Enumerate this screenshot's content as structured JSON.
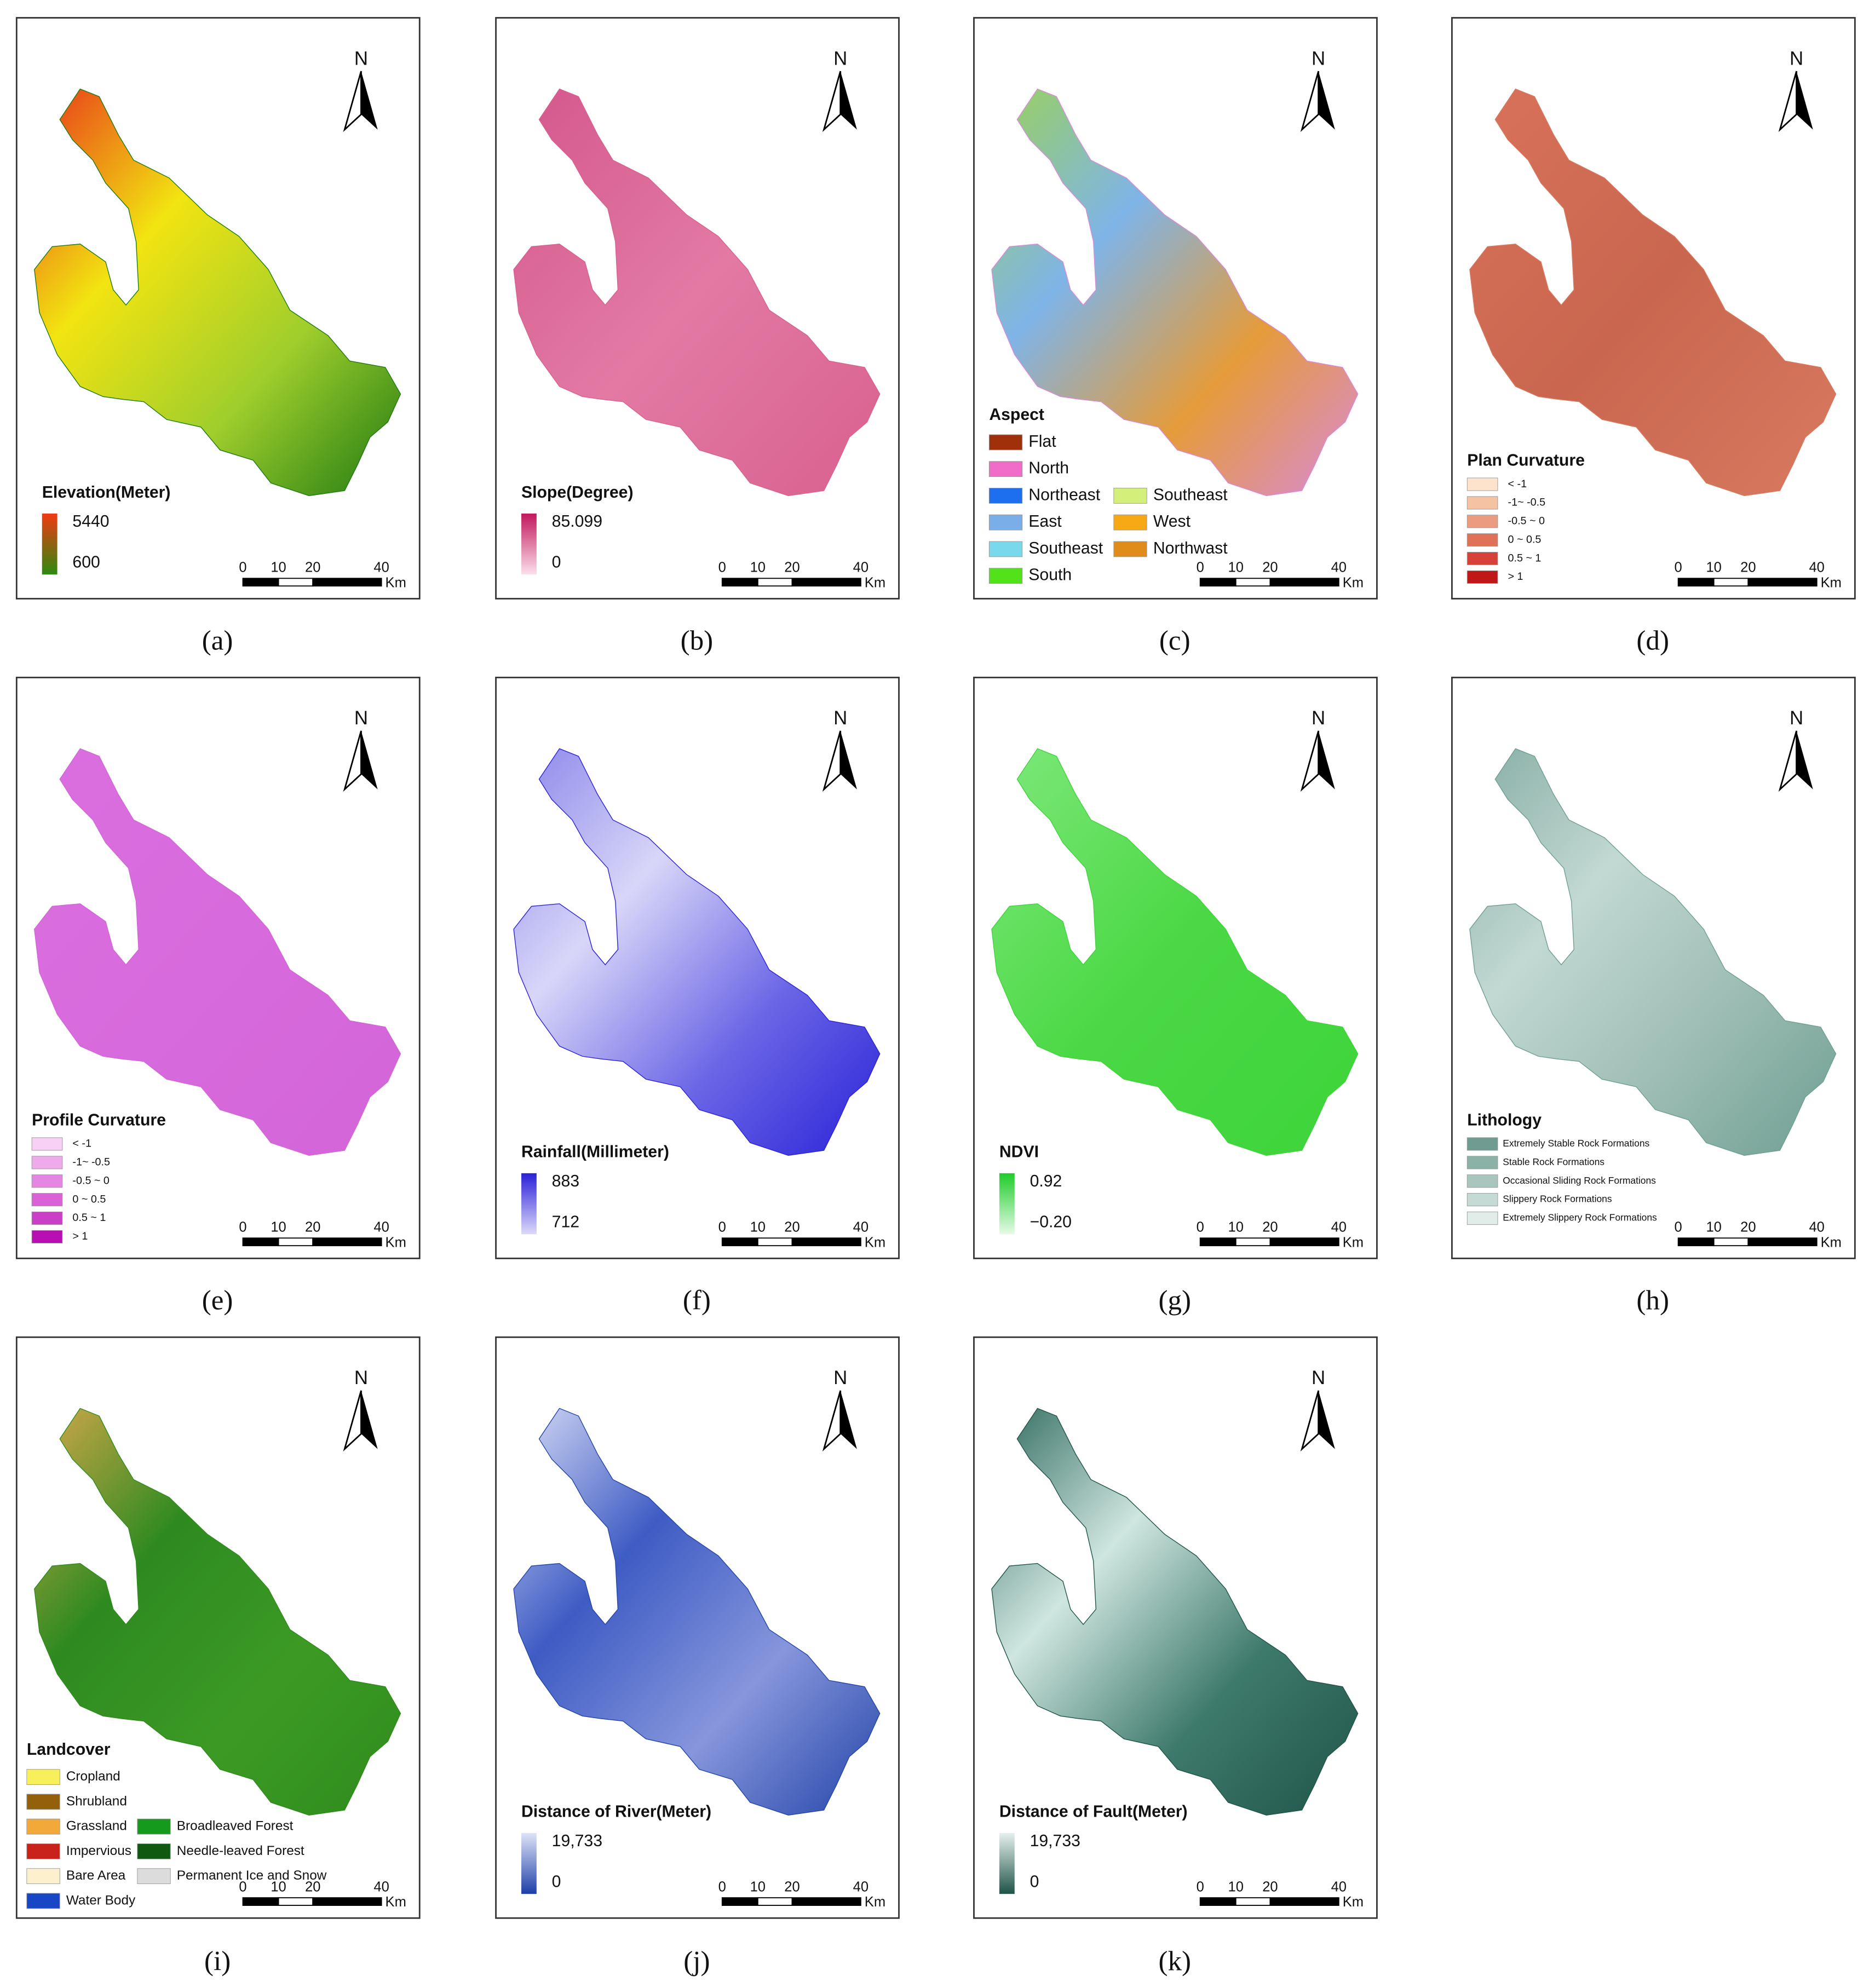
{
  "panels": [
    {
      "caption": "(a)",
      "north": "N",
      "scale": [
        "0",
        "10",
        "20",
        "40"
      ],
      "unit": "Km",
      "fill": [
        "#e8361a",
        "#f2e411",
        "#9fce2c",
        "#1f7a12"
      ],
      "legend": {
        "type": "gradient",
        "title": "Elevation(Meter)",
        "labels": [
          "5440",
          "600"
        ],
        "colors": [
          "#f03a12",
          "#2e8a10"
        ]
      }
    },
    {
      "caption": "(b)",
      "north": "N",
      "scale": [
        "0",
        "10",
        "20",
        "40"
      ],
      "unit": "Km",
      "fill": [
        "#d4578c",
        "#e27aa4",
        "#d9608f"
      ],
      "legend": {
        "type": "gradient",
        "title": "Slope(Degree)",
        "labels": [
          "85.099",
          "0"
        ],
        "colors": [
          "#c2185b",
          "#fbe0ec"
        ]
      }
    },
    {
      "caption": "(c)",
      "north": "N",
      "scale": [
        "0",
        "10",
        "20",
        "40"
      ],
      "unit": "Km",
      "fill": [
        "#9ad25a",
        "#7fb4e8",
        "#e59b3a",
        "#d98ad8"
      ],
      "legend": {
        "type": "items",
        "title": "Aspect",
        "split": 6,
        "items": [
          {
            "label": "Flat",
            "color": "#a0300a"
          },
          {
            "label": "North",
            "color": "#f06cc8"
          },
          {
            "label": "Northeast",
            "color": "#1e6ff0"
          },
          {
            "label": "East",
            "color": "#7aaee8"
          },
          {
            "label": "Southeast",
            "color": "#7ad8ec"
          },
          {
            "label": "South",
            "color": "#52e21a"
          },
          {
            "label": "Southeast",
            "color": "#d4f07a"
          },
          {
            "label": "West",
            "color": "#f6a815"
          },
          {
            "label": "Northwast",
            "color": "#e08c1a"
          }
        ]
      }
    },
    {
      "caption": "(d)",
      "north": "N",
      "scale": [
        "0",
        "10",
        "20",
        "40"
      ],
      "unit": "Km",
      "fill": [
        "#d9725a",
        "#c9664f",
        "#d87a60"
      ],
      "legend": {
        "type": "small",
        "title": "Plan Curvature",
        "items": [
          {
            "label": "< -1",
            "color": "#fde3cc"
          },
          {
            "label": "-1~ -0.5",
            "color": "#f6c2a4"
          },
          {
            "label": "-0.5 ~ 0",
            "color": "#eb9c80"
          },
          {
            "label": "0 ~ 0.5",
            "color": "#e07058"
          },
          {
            "label": "0.5 ~ 1",
            "color": "#d6423a"
          },
          {
            "label": "> 1",
            "color": "#c01818"
          }
        ]
      }
    },
    {
      "caption": "(e)",
      "north": "N",
      "scale": [
        "0",
        "10",
        "20",
        "40"
      ],
      "unit": "Km",
      "fill": [
        "#db6fe0",
        "#d365d8"
      ],
      "legend": {
        "type": "small",
        "title": "Profile Curvature",
        "items": [
          {
            "label": "< -1",
            "color": "#f8d0f6"
          },
          {
            "label": "-1~ -0.5",
            "color": "#efaaeb"
          },
          {
            "label": "-0.5 ~ 0",
            "color": "#e486e2"
          },
          {
            "label": "0 ~ 0.5",
            "color": "#d862d6"
          },
          {
            "label": "0.5 ~ 1",
            "color": "#cb3ec8"
          },
          {
            "label": "> 1",
            "color": "#b80fb4"
          }
        ]
      }
    },
    {
      "caption": "(f)",
      "north": "N",
      "scale": [
        "0",
        "10",
        "20",
        "40"
      ],
      "unit": "Km",
      "fill": [
        "#8a86ea",
        "#d8d6f8",
        "#6b66e6",
        "#2a22d8"
      ],
      "legend": {
        "type": "gradient",
        "title": "Rainfall(Millimeter)",
        "labels": [
          "883",
          "712"
        ],
        "colors": [
          "#2a20d8",
          "#ddd9fa"
        ]
      }
    },
    {
      "caption": "(g)",
      "north": "N",
      "scale": [
        "0",
        "10",
        "20",
        "40"
      ],
      "unit": "Km",
      "fill": [
        "#7ee87a",
        "#4ad844",
        "#3ed43a"
      ],
      "legend": {
        "type": "gradient",
        "title": "NDVI",
        "labels": [
          "0.92",
          "−0.20"
        ],
        "colors": [
          "#1ecc2a",
          "#e6fbe6"
        ]
      }
    },
    {
      "caption": "(h)",
      "north": "N",
      "scale": [
        "0",
        "10",
        "20",
        "40"
      ],
      "unit": "Km",
      "fill": [
        "#86aea4",
        "#c2d8d3",
        "#9dbdb4",
        "#6f9e92"
      ],
      "legend": {
        "type": "small",
        "title": "Lithology",
        "items": [
          {
            "label": "Extremely Stable Rock Formations",
            "color": "#6e9c90"
          },
          {
            "label": "Stable Rock Formations",
            "color": "#8cb2a8"
          },
          {
            "label": "Occasional Sliding Rock Formations",
            "color": "#a9c6be"
          },
          {
            "label": "Slippery Rock Formations",
            "color": "#c6dad5"
          },
          {
            "label": "Extremely Slippery Rock Formations",
            "color": "#e2ede9"
          }
        ]
      }
    },
    {
      "caption": "(i)",
      "north": "N",
      "scale": [
        "0",
        "10",
        "20",
        "40"
      ],
      "unit": "Km",
      "fill": [
        "#d6a84a",
        "#2e8a20",
        "#3c9a24",
        "#2f8c1c"
      ],
      "legend": {
        "type": "items",
        "title": "Landcover",
        "split": 6,
        "items": [
          {
            "label": "Cropland",
            "color": "#f7f05a"
          },
          {
            "label": "Shrubland",
            "color": "#93600c"
          },
          {
            "label": "Grassland",
            "color": "#f2a93a"
          },
          {
            "label": "Impervious",
            "color": "#c9221a"
          },
          {
            "label": "Bare Area",
            "color": "#fdf0cc"
          },
          {
            "label": "Water Body",
            "color": "#1846c4"
          },
          {
            "label": "Broadleaved Forest",
            "color": "#169a1e"
          },
          {
            "label": "Needle-leaved Forest",
            "color": "#0f5a10"
          },
          {
            "label": "Permanent Ice and Snow",
            "color": "#dcdcdc"
          }
        ]
      }
    },
    {
      "caption": "(j)",
      "north": "N",
      "scale": [
        "0",
        "10",
        "20",
        "40"
      ],
      "unit": "Km",
      "fill": [
        "#d8dcf6",
        "#3e5cc4",
        "#8696dc",
        "#2444a8"
      ],
      "legend": {
        "type": "gradient",
        "title": "Distance of River(Meter)",
        "labels": [
          "19,733",
          "0"
        ],
        "colors": [
          "#dfe4f8",
          "#1f3fa8"
        ]
      }
    },
    {
      "caption": "(k)",
      "north": "N",
      "scale": [
        "0",
        "10",
        "20",
        "40"
      ],
      "unit": "Km",
      "fill": [
        "#2f6a5e",
        "#cfe6e0",
        "#3e7a6c",
        "#1f5448"
      ],
      "legend": {
        "type": "gradient",
        "title": "Distance of Fault(Meter)",
        "labels": [
          "19,733",
          "0"
        ],
        "colors": [
          "#e6f1ee",
          "#1f5448"
        ]
      }
    }
  ]
}
